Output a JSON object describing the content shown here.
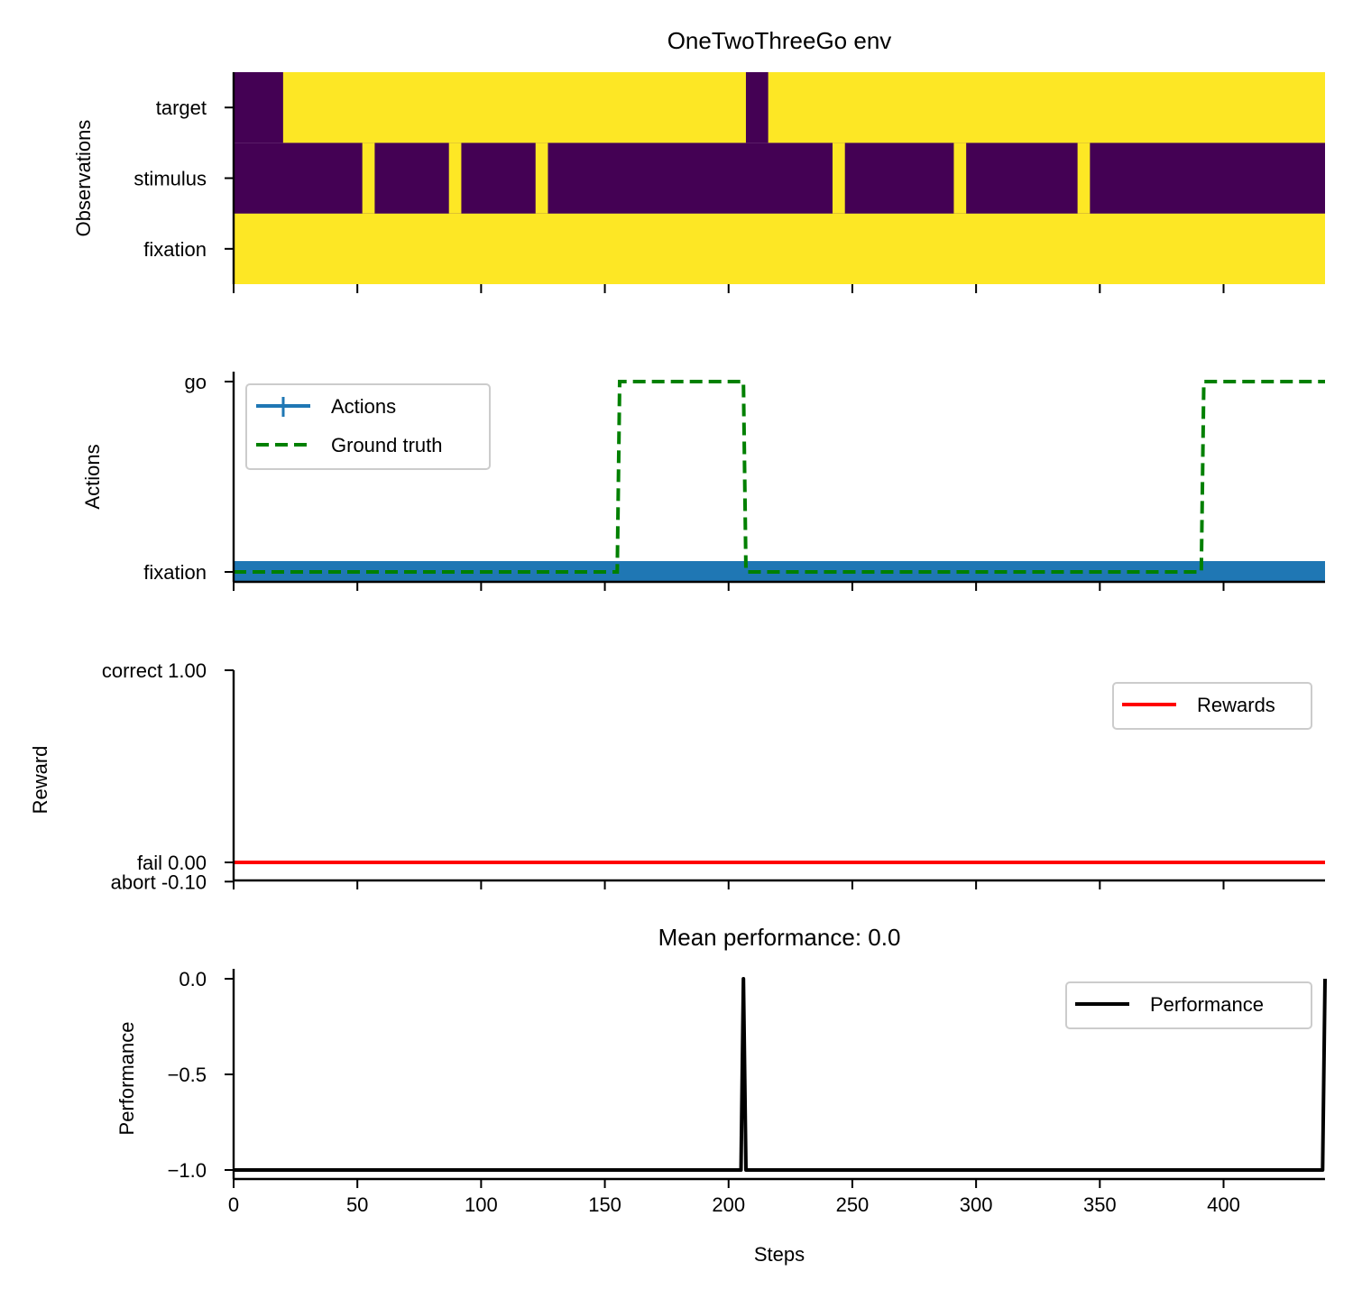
{
  "chart_data": [
    {
      "type": "heatmap",
      "title": "OneTwoThreeGo env",
      "ylabel": "Observations",
      "rows": [
        "fixation",
        "stimulus",
        "target"
      ],
      "x_range": [
        0,
        441
      ],
      "colors": {
        "high": "#fde725",
        "low": "#440154"
      },
      "high_segments": {
        "fixation": [
          [
            0,
            441
          ]
        ],
        "stimulus": [
          [
            52,
            57
          ],
          [
            87,
            92
          ],
          [
            122,
            127
          ],
          [
            242,
            247
          ],
          [
            291,
            296
          ],
          [
            341,
            346
          ]
        ],
        "target": [
          [
            20,
            207
          ],
          [
            216,
            441
          ]
        ]
      }
    },
    {
      "type": "line",
      "ylabel": "Actions",
      "yticks": [
        {
          "value": 0,
          "label": "fixation"
        },
        {
          "value": 1,
          "label": "go"
        }
      ],
      "x_range": [
        0,
        441
      ],
      "legend": {
        "position": "top-left",
        "entries": [
          "Actions",
          "Ground truth"
        ]
      },
      "series": [
        {
          "name": "Actions",
          "color": "#1f77b4",
          "points": [
            [
              0,
              0
            ],
            [
              441,
              0
            ]
          ]
        },
        {
          "name": "Ground truth",
          "color": "#008000",
          "dashed": true,
          "points": [
            [
              0,
              0
            ],
            [
              155,
              0
            ],
            [
              156,
              1
            ],
            [
              206,
              1
            ],
            [
              207,
              0
            ],
            [
              391,
              0
            ],
            [
              392,
              1
            ],
            [
              441,
              1
            ]
          ]
        }
      ]
    },
    {
      "type": "line",
      "ylabel": "Reward",
      "yticks": [
        {
          "value": -0.1,
          "label": "abort -0.10"
        },
        {
          "value": 0,
          "label": "fail 0.00"
        },
        {
          "value": 1,
          "label": "correct 1.00"
        }
      ],
      "ylim": [
        -0.1,
        1.0
      ],
      "x_range": [
        0,
        441
      ],
      "legend": {
        "position": "top-right",
        "entries": [
          "Rewards"
        ]
      },
      "series": [
        {
          "name": "Rewards",
          "color": "#ff0000",
          "points": [
            [
              0,
              0
            ],
            [
              441,
              0
            ]
          ]
        }
      ]
    },
    {
      "type": "line",
      "title": "Mean performance: 0.0",
      "xlabel": "Steps",
      "ylabel": "Performance",
      "yticks": [
        {
          "value": -1,
          "label": "−1.0"
        },
        {
          "value": -0.5,
          "label": "−0.5"
        },
        {
          "value": 0,
          "label": "0.0"
        }
      ],
      "ylim": [
        -1.05,
        0.05
      ],
      "x_range": [
        0,
        441
      ],
      "xticks": [
        {
          "value": 0,
          "label": "0"
        },
        {
          "value": 50,
          "label": "50"
        },
        {
          "value": 100,
          "label": "100"
        },
        {
          "value": 150,
          "label": "150"
        },
        {
          "value": 200,
          "label": "200"
        },
        {
          "value": 250,
          "label": "250"
        },
        {
          "value": 300,
          "label": "300"
        },
        {
          "value": 350,
          "label": "350"
        },
        {
          "value": 400,
          "label": "400"
        }
      ],
      "legend": {
        "position": "top-right",
        "entries": [
          "Performance"
        ]
      },
      "series": [
        {
          "name": "Performance",
          "color": "#000000",
          "points": [
            [
              0,
              -1
            ],
            [
              205,
              -1
            ],
            [
              206,
              0
            ],
            [
              207,
              -1
            ],
            [
              440,
              -1
            ],
            [
              441,
              0
            ]
          ]
        }
      ]
    }
  ]
}
